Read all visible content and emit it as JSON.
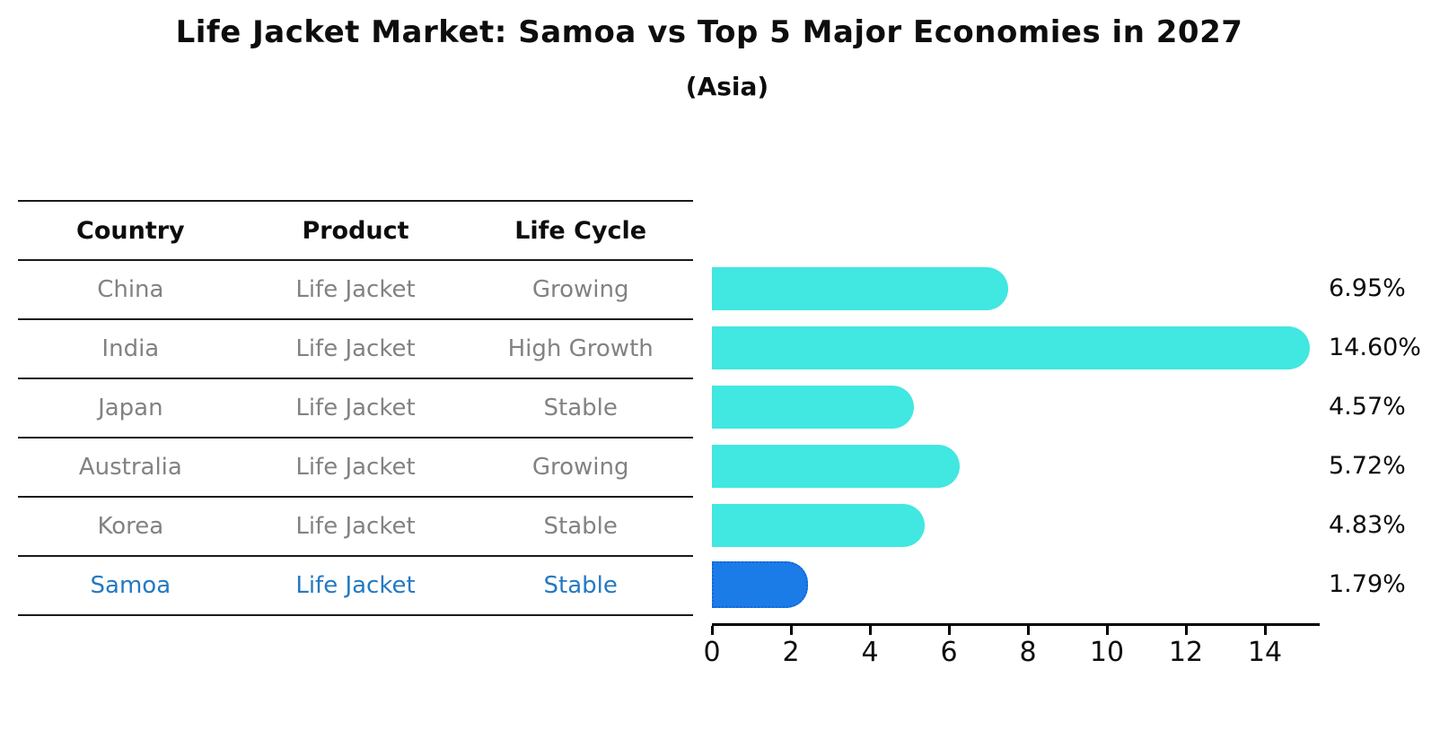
{
  "title": "Life Jacket Market: Samoa vs Top 5 Major Economies in 2027",
  "subtitle": "(Asia)",
  "table": {
    "columns": [
      "Country",
      "Product",
      "Life Cycle"
    ],
    "rows": [
      {
        "country": "China",
        "product": "Life Jacket",
        "life_cycle": "Growing",
        "highlight": false
      },
      {
        "country": "India",
        "product": "Life Jacket",
        "life_cycle": "High Growth",
        "highlight": false
      },
      {
        "country": "Japan",
        "product": "Life Jacket",
        "life_cycle": "Stable",
        "highlight": false
      },
      {
        "country": "Australia",
        "product": "Life Jacket",
        "life_cycle": "Growing",
        "highlight": false
      },
      {
        "country": "Korea",
        "product": "Life Jacket",
        "life_cycle": "Stable",
        "highlight": false
      },
      {
        "country": "Samoa",
        "product": "Life Jacket",
        "life_cycle": "Stable",
        "highlight": true
      }
    ]
  },
  "chart_data": {
    "type": "bar",
    "orientation": "horizontal",
    "title": "Life Jacket Market: Samoa vs Top 5 Major Economies in 2027",
    "subtitle": "(Asia)",
    "categories": [
      "China",
      "India",
      "Japan",
      "Australia",
      "Korea",
      "Samoa"
    ],
    "values": [
      6.95,
      14.6,
      4.57,
      5.72,
      4.83,
      1.79
    ],
    "value_labels": [
      "6.95%",
      "14.60%",
      "4.57%",
      "5.72%",
      "4.83%",
      "1.79%"
    ],
    "highlight_index": 5,
    "x_ticks": [
      0,
      2,
      4,
      6,
      8,
      10,
      12,
      14
    ],
    "xlim": [
      0,
      15.36
    ],
    "grid": false,
    "legend": "none",
    "bar_color": "#41e7e1",
    "highlight_bar_color": "#1b7ce8",
    "highlight_text_color": "#2479c2"
  }
}
